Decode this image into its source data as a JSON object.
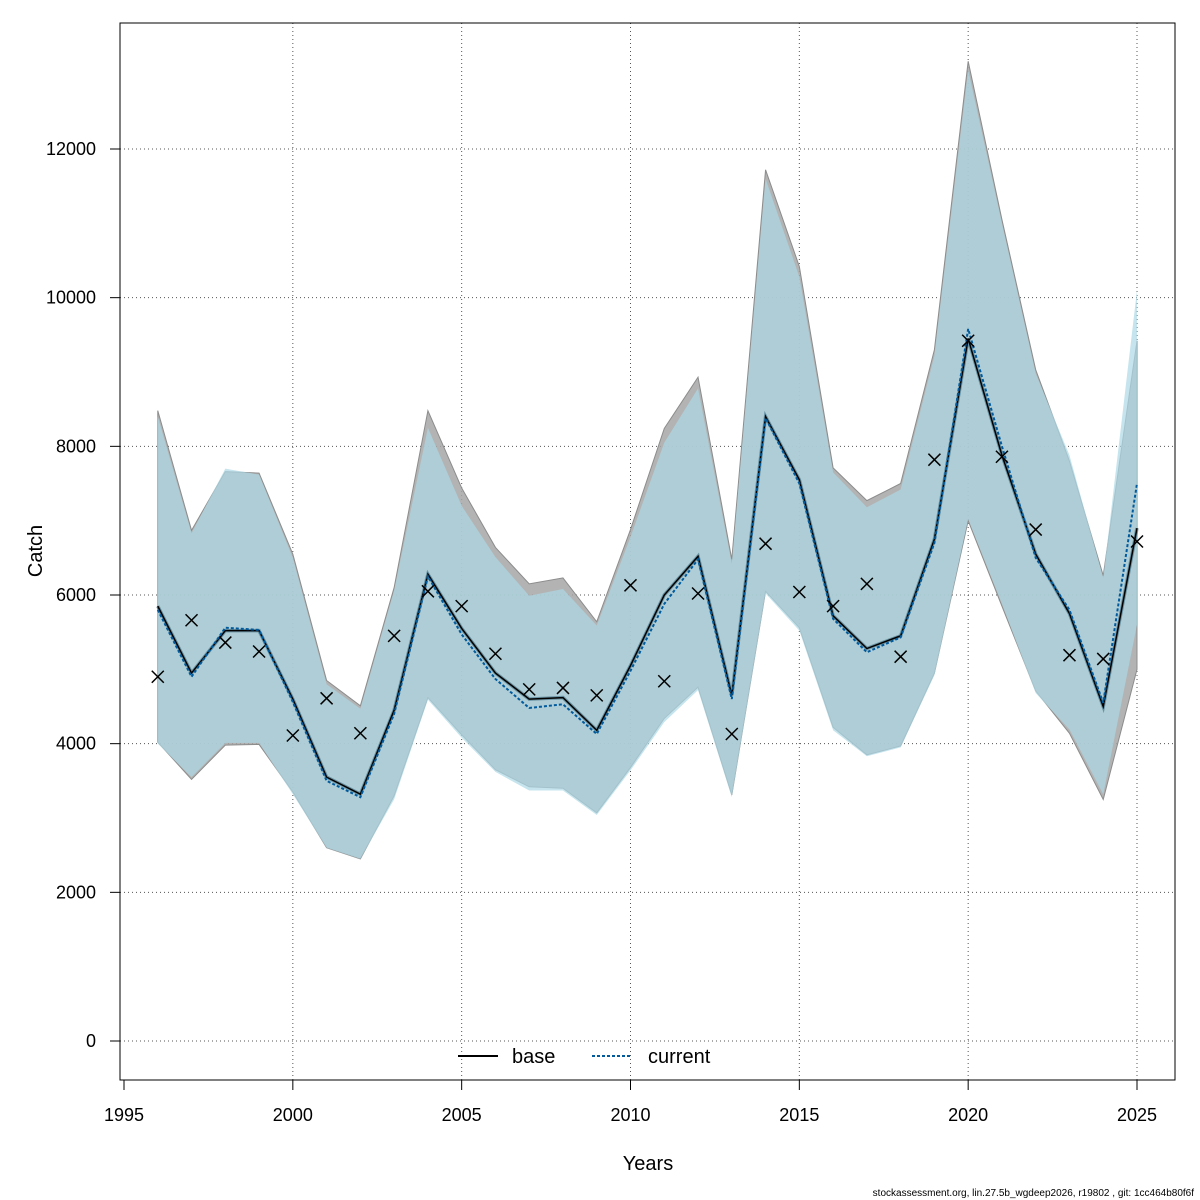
{
  "chart_data": {
    "type": "line",
    "title": "",
    "xlabel": "Years",
    "ylabel": "Catch",
    "xlim": [
      1995,
      2026
    ],
    "ylim": [
      -500,
      13500
    ],
    "xticks": [
      1995,
      2000,
      2005,
      2010,
      2015,
      2020,
      2025
    ],
    "yticks": [
      0,
      2000,
      4000,
      6000,
      8000,
      10000,
      12000
    ],
    "grid": true,
    "legend_position": "bottom-center",
    "x": [
      1996,
      1997,
      1998,
      1999,
      2000,
      2001,
      2002,
      2003,
      2004,
      2005,
      2006,
      2007,
      2008,
      2009,
      2010,
      2011,
      2012,
      2013,
      2014,
      2015,
      2016,
      2017,
      2018,
      2019,
      2020,
      2021,
      2022,
      2023,
      2024,
      2025
    ],
    "series": [
      {
        "name": "base",
        "style": "solid",
        "color": "#000000",
        "band_color": "#a6a6a6",
        "values": [
          5850,
          4950,
          5520,
          5520,
          4600,
          3550,
          3320,
          4450,
          6280,
          5550,
          4950,
          4600,
          4620,
          4180,
          5050,
          6000,
          6520,
          4650,
          8400,
          7550,
          5720,
          5280,
          5450,
          6750,
          9450,
          7880,
          6550,
          5750,
          4500,
          6900
        ],
        "lower": [
          4020,
          3520,
          3980,
          3990,
          3350,
          2600,
          2450,
          3300,
          4620,
          4120,
          3650,
          3420,
          3400,
          3070,
          3680,
          4340,
          4760,
          3310,
          6050,
          5560,
          4220,
          3850,
          3970,
          4950,
          7000,
          5850,
          4710,
          4140,
          3250,
          5000
        ],
        "upper": [
          8480,
          6870,
          7660,
          7640,
          6550,
          4850,
          4510,
          6100,
          8480,
          7440,
          6640,
          6150,
          6230,
          5640,
          6880,
          8240,
          8930,
          6480,
          11720,
          10420,
          7710,
          7270,
          7500,
          9300,
          13180,
          11050,
          9030,
          7800,
          6260,
          9420
        ]
      },
      {
        "name": "current",
        "style": "dashed",
        "color": "#005a9c",
        "band_color": "#add8e6",
        "values": [
          5800,
          4900,
          5560,
          5530,
          4560,
          3500,
          3280,
          4400,
          6250,
          5470,
          4870,
          4480,
          4530,
          4130,
          4980,
          5880,
          6480,
          4600,
          8380,
          7500,
          5680,
          5230,
          5430,
          6700,
          9580,
          8000,
          6500,
          5800,
          4550,
          7500
        ],
        "lower": [
          4000,
          3550,
          4010,
          4010,
          3320,
          2600,
          2450,
          3250,
          4590,
          4080,
          3620,
          3370,
          3370,
          3040,
          3640,
          4290,
          4720,
          3280,
          6020,
          5520,
          4180,
          3830,
          3950,
          4920,
          7020,
          5880,
          4680,
          4190,
          3320,
          5600
        ],
        "upper": [
          8400,
          6830,
          7700,
          7620,
          6500,
          4800,
          4470,
          6060,
          8250,
          7200,
          6510,
          5990,
          6080,
          5590,
          6780,
          8050,
          8780,
          6420,
          11600,
          10280,
          7650,
          7180,
          7420,
          9220,
          13060,
          11000,
          8980,
          7880,
          6230,
          10100
        ]
      }
    ],
    "observed": {
      "name": "observed",
      "marker": "x",
      "values": [
        4900,
        5660,
        5360,
        5240,
        4110,
        4610,
        4140,
        5450,
        6050,
        5850,
        5210,
        4730,
        4750,
        4650,
        6130,
        4840,
        6020,
        4130,
        6690,
        6040,
        5850,
        6150,
        5170,
        7820,
        9420,
        7860,
        6880,
        5190,
        5140,
        6720
      ]
    }
  },
  "footer": "stockassessment.org, lin.27.5b_wgdeep2026, r19802 , git: 1cc464b80f6f"
}
